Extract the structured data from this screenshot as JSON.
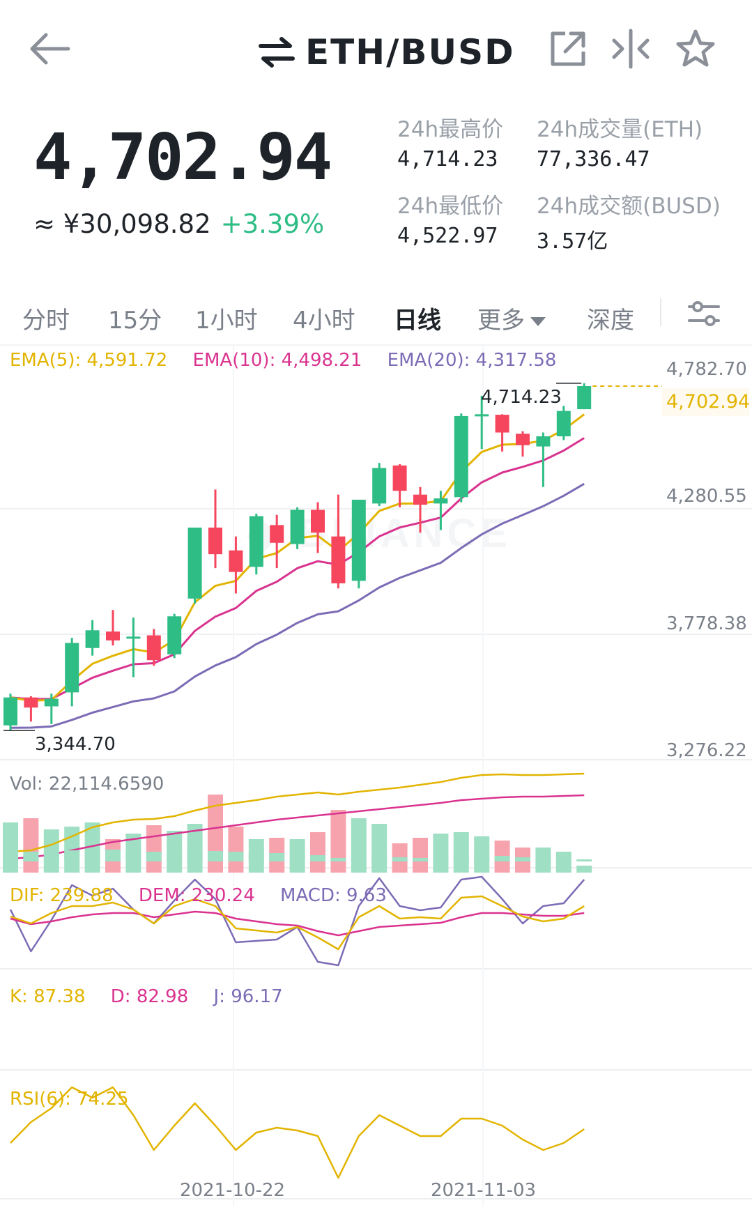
{
  "header": {
    "pair": "ETH/BUSD",
    "icons": [
      "back-arrow-icon",
      "swap-icon",
      "share-icon",
      "compare-icon",
      "star-icon"
    ]
  },
  "ticker": {
    "last_price": "4,702.94",
    "cny_price": "≈ ¥30,098.82",
    "change_pct": "+3.39%",
    "high_label": "24h最高价",
    "high_value": "4,714.23",
    "low_label": "24h最低价",
    "low_value": "4,522.97",
    "vol_label": "24h成交量(ETH)",
    "vol_value": "77,336.47",
    "amount_label": "24h成交额(BUSD)",
    "amount_value": "3.57亿"
  },
  "tabs": {
    "time": "分时",
    "m15": "15分",
    "h1": "1小时",
    "h4": "4小时",
    "day": "日线",
    "more": "更多",
    "depth": "深度"
  },
  "indicators": {
    "ema5": "EMA(5): 4,591.72",
    "ema10": "EMA(10): 4,498.21",
    "ema20": "EMA(20): 4,317.58",
    "vol": "Vol: 22,114.6590",
    "dif": "DIF: 239.88",
    "dem": "DEM: 230.24",
    "macd": "MACD: 9.63",
    "k": "K: 87.38",
    "d": "D: 82.98",
    "j": "J: 96.17",
    "rsi": "RSI(6): 74.25"
  },
  "axis": {
    "p1": "4,782.70",
    "p2": "4,280.55",
    "p3": "3,778.38",
    "p4": "3,276.22",
    "current": "4,702.94",
    "max_mark": "4,714.23",
    "min_mark": "3,344.70",
    "date1": "2021-10-22",
    "date2": "2021-11-03"
  },
  "colors": {
    "up": "#2ebd85",
    "down": "#f6465d",
    "ema5": "#e2b400",
    "ema10": "#d9338f",
    "ema20": "#7c6bb5"
  },
  "chart_data": {
    "type": "candlestick",
    "pair": "ETH/BUSD",
    "interval": "1d",
    "price_axis": [
      3276.22,
      3778.38,
      4280.55,
      4782.7
    ],
    "x_ticks": [
      "2021-10-22",
      "2021-11-03"
    ],
    "candles": [
      {
        "o": 3365,
        "c": 3475,
        "h": 3490,
        "l": 3345
      },
      {
        "o": 3475,
        "c": 3435,
        "h": 3480,
        "l": 3380
      },
      {
        "o": 3440,
        "c": 3470,
        "h": 3490,
        "l": 3370
      },
      {
        "o": 3495,
        "c": 3690,
        "h": 3710,
        "l": 3440
      },
      {
        "o": 3670,
        "c": 3740,
        "h": 3780,
        "l": 3640
      },
      {
        "o": 3735,
        "c": 3700,
        "h": 3820,
        "l": 3680
      },
      {
        "o": 3710,
        "c": 3715,
        "h": 3790,
        "l": 3555
      },
      {
        "o": 3720,
        "c": 3622,
        "h": 3745,
        "l": 3600
      },
      {
        "o": 3645,
        "c": 3795,
        "h": 3805,
        "l": 3630
      },
      {
        "o": 3865,
        "c": 4145,
        "h": 4145,
        "l": 3845
      },
      {
        "o": 4145,
        "c": 4040,
        "h": 4295,
        "l": 3985
      },
      {
        "o": 4055,
        "c": 3970,
        "h": 4110,
        "l": 3885
      },
      {
        "o": 3990,
        "c": 4190,
        "h": 4200,
        "l": 3960
      },
      {
        "o": 4155,
        "c": 4085,
        "h": 4195,
        "l": 3985
      },
      {
        "o": 4080,
        "c": 4215,
        "h": 4225,
        "l": 4060
      },
      {
        "o": 4215,
        "c": 4125,
        "h": 4245,
        "l": 4045
      },
      {
        "o": 4110,
        "c": 3925,
        "h": 4275,
        "l": 3905
      },
      {
        "o": 3935,
        "c": 4255,
        "h": 4255,
        "l": 3905
      },
      {
        "o": 4240,
        "c": 4380,
        "h": 4400,
        "l": 4230
      },
      {
        "o": 4390,
        "c": 4290,
        "h": 4395,
        "l": 4225
      },
      {
        "o": 4275,
        "c": 4235,
        "h": 4305,
        "l": 4125
      },
      {
        "o": 4240,
        "c": 4260,
        "h": 4290,
        "l": 4135
      },
      {
        "o": 4265,
        "c": 4585,
        "h": 4595,
        "l": 4245
      },
      {
        "o": 4590,
        "c": 4592,
        "h": 4665,
        "l": 4455
      },
      {
        "o": 4590,
        "c": 4520,
        "h": 4592,
        "l": 4445
      },
      {
        "o": 4515,
        "c": 4470,
        "h": 4525,
        "l": 4425
      },
      {
        "o": 4465,
        "c": 4505,
        "h": 4520,
        "l": 4305
      },
      {
        "o": 4505,
        "c": 4605,
        "h": 4625,
        "l": 4490
      },
      {
        "o": 4612,
        "c": 4702.94,
        "h": 4714.23,
        "l": 4612
      }
    ],
    "ema5_last": 4591.72,
    "ema10_last": 4498.21,
    "ema20_last": 4317.58,
    "volume_last": 22114.659,
    "macd": {
      "dif": 239.88,
      "dem": 230.24,
      "macd": 9.63
    },
    "kdj": {
      "k": 87.38,
      "d": 82.98,
      "j": 96.17
    },
    "rsi6": 74.25
  }
}
